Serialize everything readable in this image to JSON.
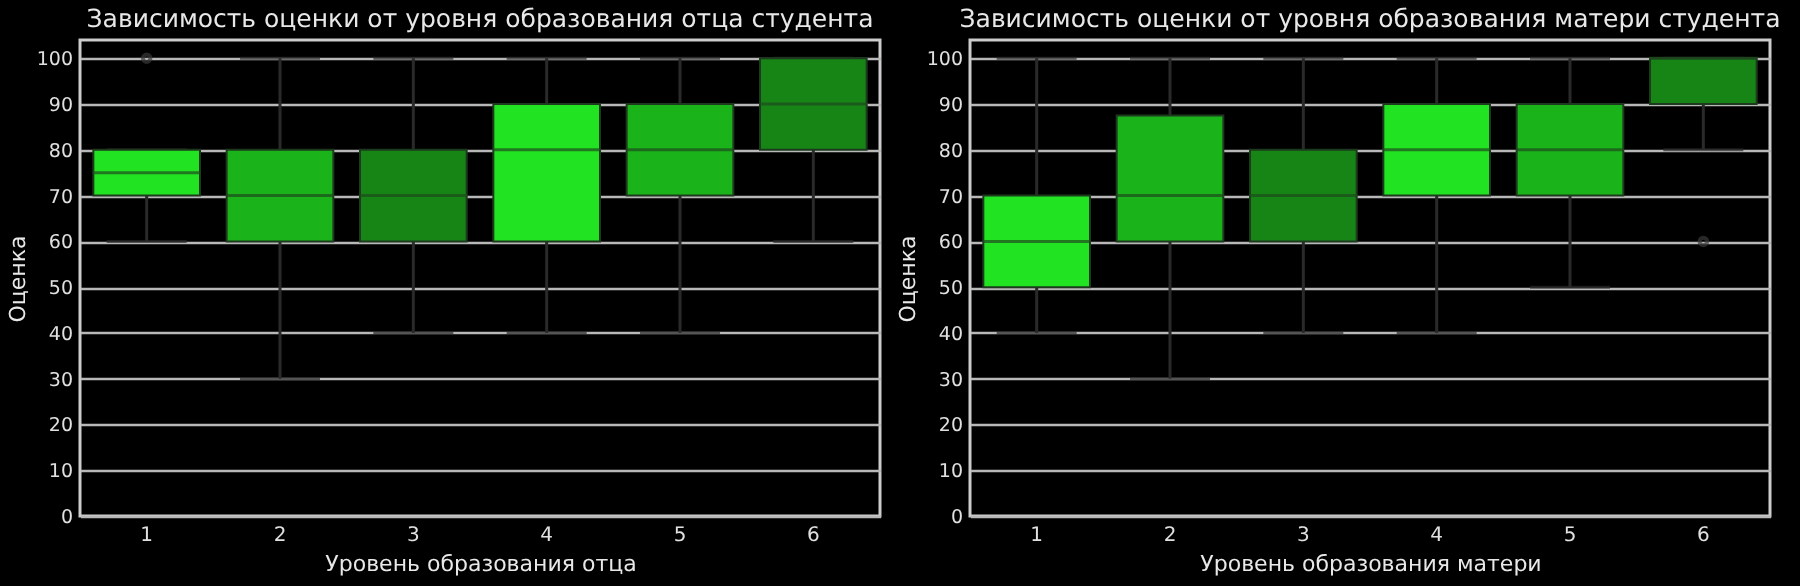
{
  "chart_data": [
    {
      "type": "box",
      "title": "Зависимость оценки от уровня образования отца студента",
      "xlabel": "Уровень образования отца",
      "ylabel": "Оценка",
      "categories": [
        "1",
        "2",
        "3",
        "4",
        "5",
        "6"
      ],
      "boxes": [
        {
          "low": 60,
          "q1": 70,
          "median": 75,
          "q3": 80,
          "high": 80,
          "outliers": [
            100
          ]
        },
        {
          "low": 30,
          "q1": 60,
          "median": 70,
          "q3": 80,
          "high": 100
        },
        {
          "low": 40,
          "q1": 60,
          "median": 70,
          "q3": 80,
          "high": 100
        },
        {
          "low": 40,
          "q1": 60,
          "median": 80,
          "q3": 90,
          "high": 100
        },
        {
          "low": 40,
          "q1": 70,
          "median": 80,
          "q3": 90,
          "high": 100
        },
        {
          "low": 60,
          "q1": 80,
          "median": 90,
          "q3": 100,
          "high": 100
        }
      ],
      "colors": [
        "#22e322",
        "#1ab31a",
        "#168516",
        "#22e322",
        "#1ab31a",
        "#168516"
      ],
      "ylim": [
        0,
        104
      ],
      "yticks": [
        0,
        10,
        20,
        30,
        40,
        50,
        60,
        70,
        80,
        90,
        100
      ],
      "grid": "y"
    },
    {
      "type": "box",
      "title": "Зависимость оценки от уровня образования матери студента",
      "xlabel": "Уровень образования матери",
      "ylabel": "Оценка",
      "categories": [
        "1",
        "2",
        "3",
        "4",
        "5",
        "6"
      ],
      "boxes": [
        {
          "low": 40,
          "q1": 50,
          "median": 60,
          "q3": 70,
          "high": 100
        },
        {
          "low": 30,
          "q1": 60,
          "median": 70,
          "q3": 87.5,
          "high": 100
        },
        {
          "low": 40,
          "q1": 60,
          "median": 70,
          "q3": 80,
          "high": 100
        },
        {
          "low": 40,
          "q1": 70,
          "median": 80,
          "q3": 90,
          "high": 100
        },
        {
          "low": 50,
          "q1": 70,
          "median": 80,
          "q3": 90,
          "high": 100
        },
        {
          "low": 80,
          "q1": 90,
          "median": 100,
          "q3": 100,
          "high": 100,
          "outliers": [
            60
          ]
        }
      ],
      "colors": [
        "#22e322",
        "#1ab31a",
        "#168516",
        "#22e322",
        "#1ab31a",
        "#168516"
      ],
      "ylim": [
        0,
        104
      ],
      "yticks": [
        0,
        10,
        20,
        30,
        40,
        50,
        60,
        70,
        80,
        90,
        100
      ],
      "grid": "y"
    }
  ]
}
